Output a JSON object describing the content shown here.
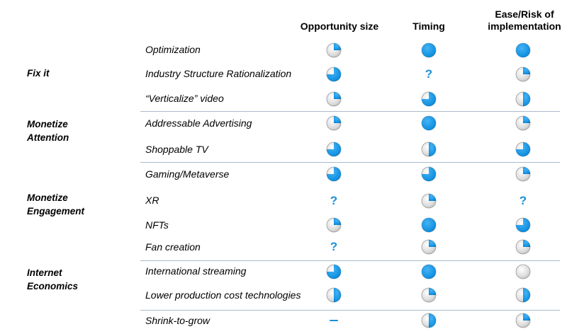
{
  "colors": {
    "accent": "#0f8fe0",
    "ball_shade": "#dcdcdc",
    "divider": "#a9bccb"
  },
  "headers": [
    {
      "key": "opportunity",
      "lines": [
        "Opportunity size"
      ]
    },
    {
      "key": "timing",
      "lines": [
        "Timing"
      ]
    },
    {
      "key": "ease",
      "lines": [
        "Ease/Risk of",
        "implementation"
      ]
    }
  ],
  "groups": [
    {
      "key": "fix-it",
      "lines": [
        "Fix it"
      ]
    },
    {
      "key": "monetize-attention",
      "lines": [
        "Monetize",
        "Attention"
      ]
    },
    {
      "key": "monetize-engagement",
      "lines": [
        "Monetize",
        "Engagement"
      ]
    },
    {
      "key": "internet-economics",
      "lines": [
        "Internet",
        "Economics"
      ]
    }
  ],
  "rows": [
    {
      "label": "Optimization",
      "ratings": [
        0.25,
        1,
        1
      ]
    },
    {
      "label": "Industry Structure Rationalization",
      "ratings": [
        0.75,
        "?",
        0.25
      ]
    },
    {
      "label": "“Verticalize” video",
      "ratings": [
        0.25,
        0.75,
        0.5
      ]
    },
    {
      "label": "Addressable Advertising",
      "ratings": [
        0.25,
        1,
        0.25
      ]
    },
    {
      "label": "Shoppable TV",
      "ratings": [
        0.75,
        0.5,
        0.75
      ]
    },
    {
      "label": "Gaming/Metaverse",
      "ratings": [
        0.75,
        0.75,
        0.25
      ]
    },
    {
      "label": "XR",
      "ratings": [
        "?",
        0.25,
        "?"
      ]
    },
    {
      "label": "NFTs",
      "ratings": [
        0.25,
        1,
        0.75
      ]
    },
    {
      "label": "Fan creation",
      "ratings": [
        "?",
        0.25,
        0.25
      ]
    },
    {
      "label": "International streaming",
      "ratings": [
        0.75,
        1,
        0
      ]
    },
    {
      "label": "Lower production cost technologies",
      "ratings": [
        0.5,
        0.25,
        0.5
      ]
    },
    {
      "label": "Shrink-to-grow",
      "ratings": [
        "–",
        0.5,
        0.25
      ]
    }
  ]
}
